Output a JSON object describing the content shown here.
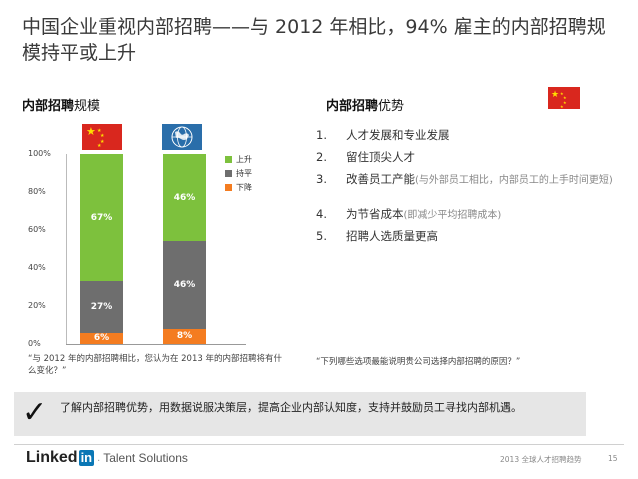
{
  "title": "中国企业重视内部招聘——与 2012 年相比，94% 雇主的内部招聘规模持平或上升",
  "left": {
    "heading_bold": "内部招聘",
    "heading_light": "规模",
    "y_ticks": [
      "100%",
      "80%",
      "60%",
      "40%",
      "20%",
      "0%"
    ],
    "legend": [
      {
        "label": "上升",
        "color": "#7dc13d"
      },
      {
        "label": "持平",
        "color": "#6e6e6e"
      },
      {
        "label": "下降",
        "color": "#f47c20"
      }
    ],
    "bars": [
      {
        "flag": "china-flag",
        "up": "67%",
        "same": "27%",
        "down": "6%"
      },
      {
        "flag": "world-flag",
        "up": "46%",
        "same": "46%",
        "down": "8%"
      }
    ],
    "caption": "“与 2012 年的内部招聘相比，您认为在 2013 年的内部招聘将有什么变化？”"
  },
  "chart_data": {
    "type": "bar",
    "stacked": true,
    "categories": [
      "中国",
      "全球"
    ],
    "series": [
      {
        "name": "下降",
        "values": [
          6,
          8
        ]
      },
      {
        "name": "持平",
        "values": [
          27,
          46
        ]
      },
      {
        "name": "上升",
        "values": [
          67,
          46
        ]
      }
    ],
    "title": "内部招聘规模",
    "xlabel": "",
    "ylabel": "",
    "ylim": [
      0,
      100
    ],
    "yticks": [
      "0%",
      "20%",
      "40%",
      "60%",
      "80%",
      "100%"
    ]
  },
  "right": {
    "heading_bold": "内部招聘",
    "heading_light": "优势",
    "items": [
      {
        "num": "1.",
        "text": "人才发展和专业发展",
        "sub": ""
      },
      {
        "num": "2.",
        "text": "留住顶尖人才",
        "sub": ""
      },
      {
        "num": "3.",
        "text": "改善员工产能",
        "sub": "(与外部员工相比，内部员工的上手时间更短)"
      },
      {
        "num": "4.",
        "text": "为节省成本",
        "sub": "(即减少平均招聘成本)"
      },
      {
        "num": "5.",
        "text": "招聘人选质量更高",
        "sub": ""
      }
    ],
    "caption": "“下列哪些选项最能说明贵公司选择内部招聘的原因？”"
  },
  "banner": {
    "check": "✓",
    "text": "了解内部招聘优势，用数据说服决策层，提高企业内部认知度，支持并鼓励员工寻找内部机遇。"
  },
  "footer": {
    "logo_linked": "Linked",
    "logo_in": "in",
    "logo_sep": ".",
    "logo_ts": "Talent Solutions",
    "note": "2013 全球人才招聘趋势",
    "page": "15"
  }
}
